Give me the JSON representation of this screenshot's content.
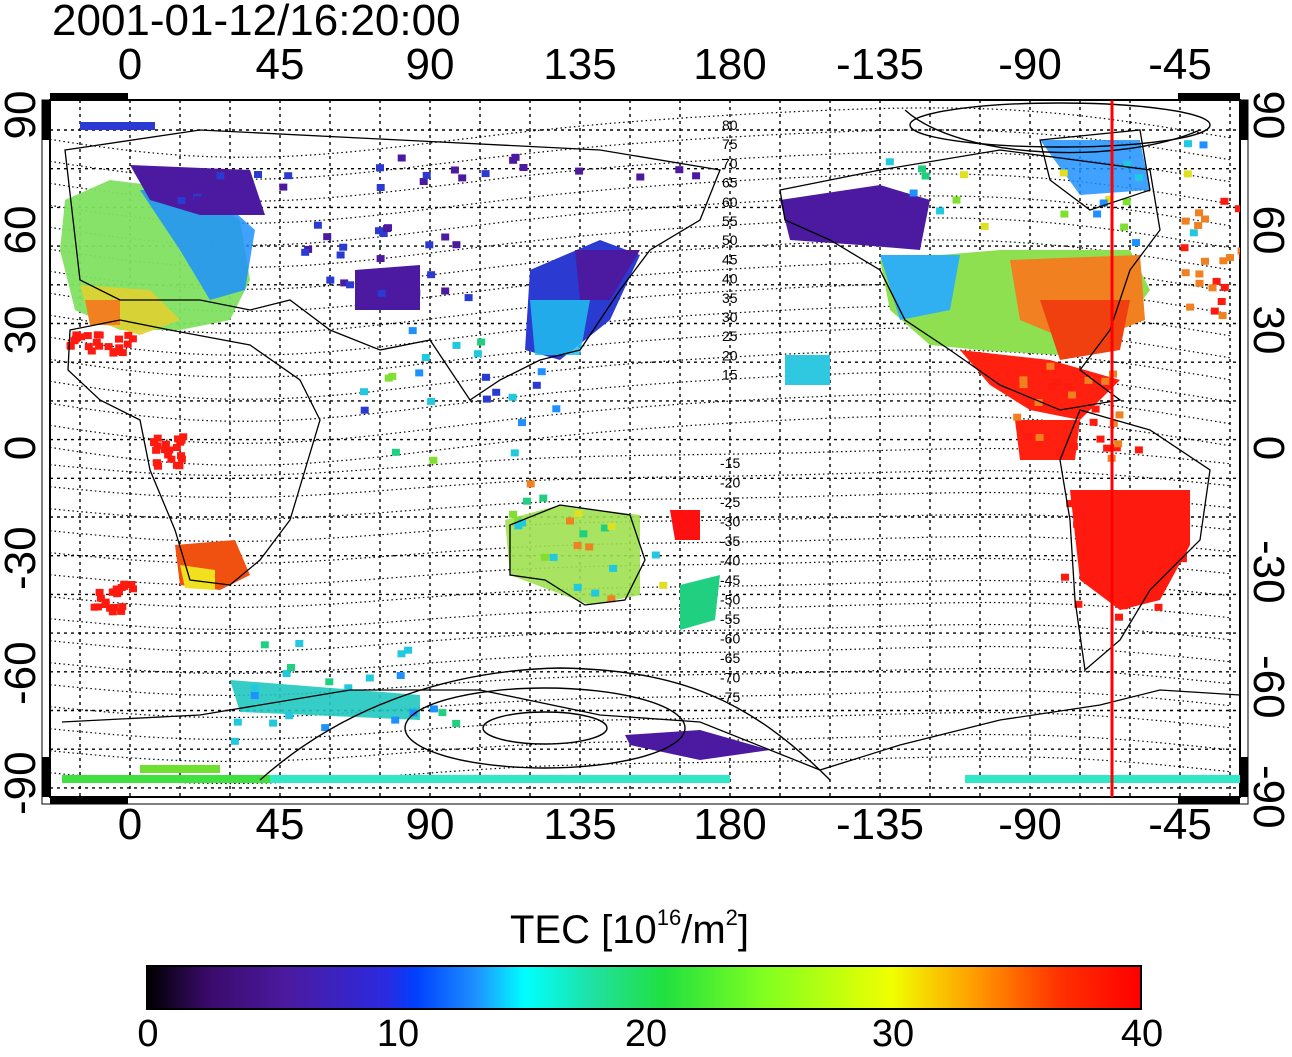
{
  "title": "2001-01-12/16:20:00",
  "lon_ticks": [
    "0",
    "45",
    "90",
    "135",
    "180",
    "-135",
    "-90",
    "-45"
  ],
  "lat_ticks": [
    "90",
    "60",
    "30",
    "0",
    "-30",
    "-60",
    "-90"
  ],
  "contour_labels_north": [
    "80",
    "75",
    "70",
    "65",
    "60",
    "55",
    "50",
    "45",
    "40",
    "35",
    "30",
    "25",
    "20",
    "15"
  ],
  "contour_labels_south": [
    "-15",
    "-20",
    "-25",
    "-30",
    "-35",
    "-40",
    "-45",
    "-50",
    "-55",
    "-60",
    "-65",
    "-70",
    "-75"
  ],
  "colorbar": {
    "label_prefix": "TEC  [10",
    "label_exp1": "16",
    "label_mid": "/m",
    "label_exp2": "2",
    "label_suffix": "]",
    "ticks": [
      "0",
      "10",
      "20",
      "30",
      "40"
    ]
  },
  "marker_color": "#ff0000"
}
